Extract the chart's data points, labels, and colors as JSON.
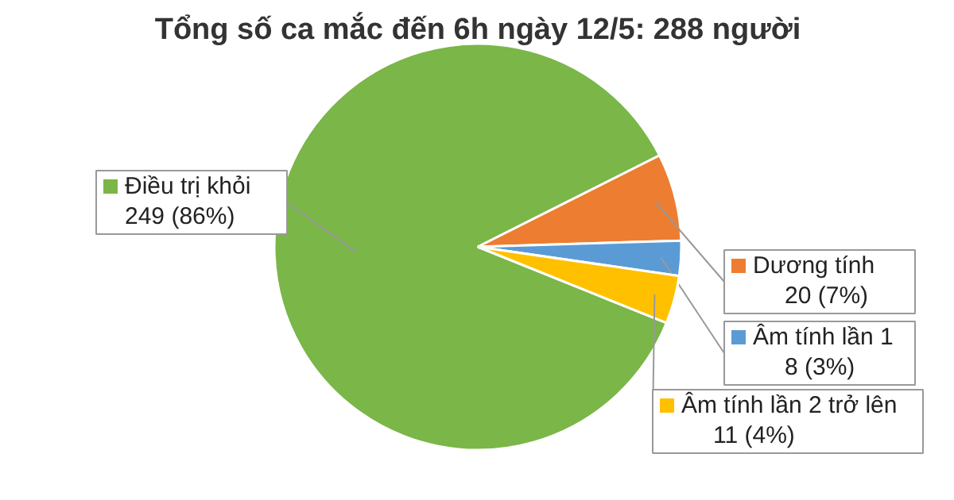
{
  "chart_data": {
    "type": "pie",
    "title": "Tổng số ca mắc đến 6h ngày 12/5: 288 người",
    "categories": [
      "Điều trị khỏi",
      "Dương tính",
      "Âm tính lần 1",
      "Âm tính lần 2 trở lên"
    ],
    "values": [
      249,
      20,
      8,
      11
    ],
    "colors": [
      "#7ab648",
      "#ed7d31",
      "#5b9bd5",
      "#ffc000"
    ],
    "value_labels": [
      "249 (86%)",
      "20 (7%)",
      "8 (3%)",
      "11 (4%)"
    ],
    "legend": "right"
  }
}
